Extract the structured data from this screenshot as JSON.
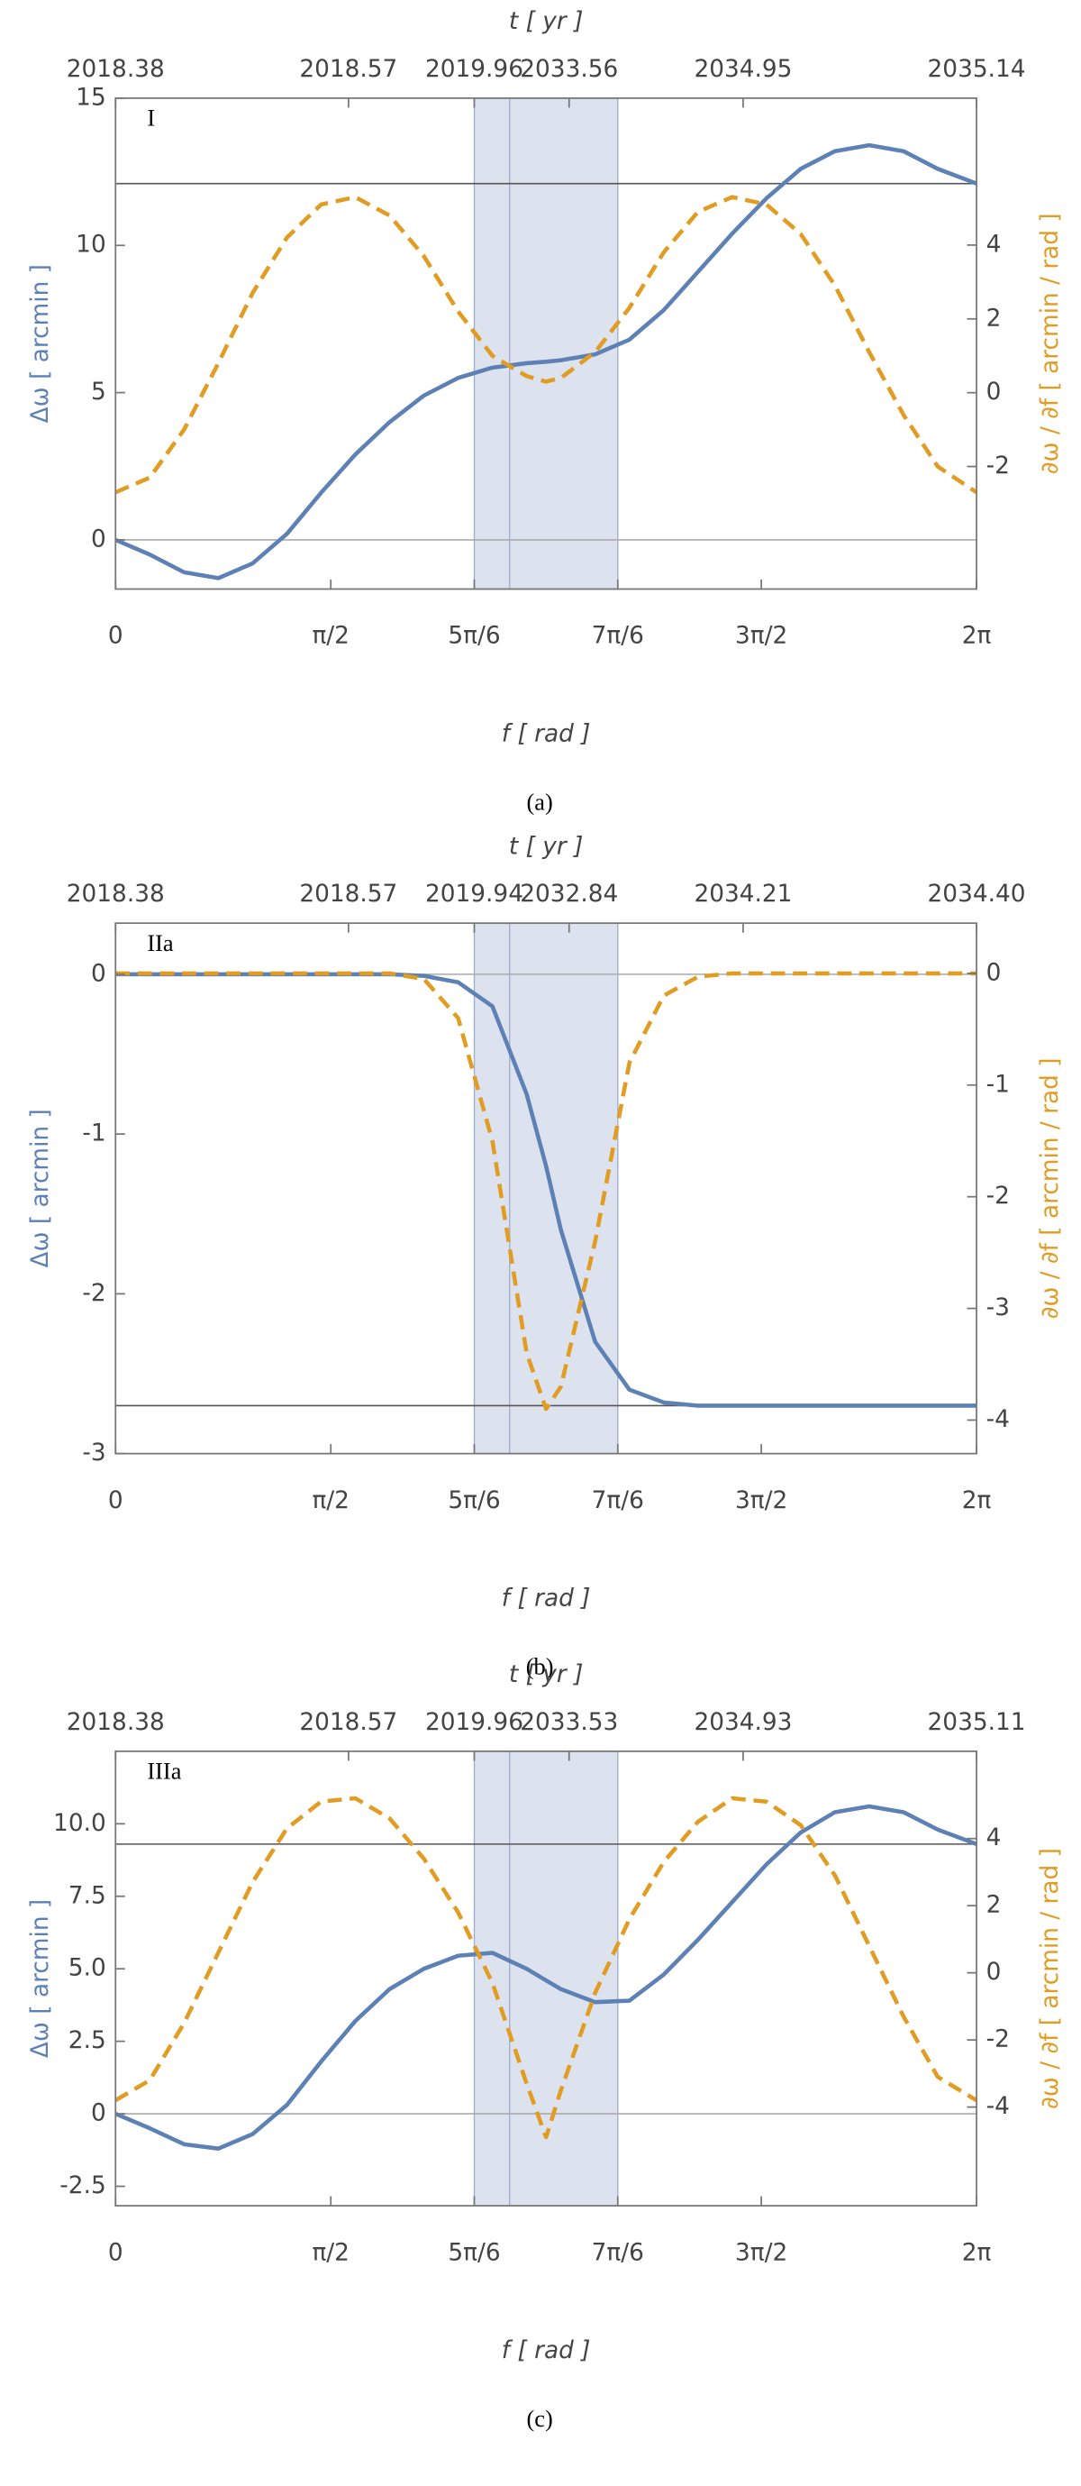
{
  "chart_data": [
    {
      "type": "line",
      "panel_label": "I",
      "caption": "(a)",
      "xlabel": "f [ rad ]",
      "x2label": "t [ yr ]",
      "ylabel": "Δω [ arcmin ]",
      "y2label": "∂ω / ∂f [ arcmin / rad ]",
      "x": [
        0,
        0.25,
        0.5,
        0.75,
        1.0,
        1.25,
        1.5,
        1.75,
        2.0,
        2.25,
        2.5,
        2.75,
        3.0,
        3.1416,
        3.25,
        3.5,
        3.75,
        4.0,
        4.25,
        4.5,
        4.75,
        5.0,
        5.25,
        5.5,
        5.75,
        6.0,
        6.2832
      ],
      "xlim": [
        0,
        6.2832
      ],
      "xticks": [
        0,
        {
          "value": 1.5708,
          "label": "π/2"
        },
        {
          "value": 2.618,
          "label": "5π/6"
        },
        {
          "value": 3.6652,
          "label": "7π/6"
        },
        {
          "value": 4.7124,
          "label": "3π/2"
        },
        {
          "value": 6.2832,
          "label": "2π"
        }
      ],
      "x2ticks": [
        {
          "value": 0,
          "label": "2018.38"
        },
        {
          "value": 1.7,
          "label": "2018.57"
        },
        {
          "value": 2.618,
          "label": "2019.96"
        },
        {
          "value": 3.31,
          "label": "2033.56"
        },
        {
          "value": 4.58,
          "label": "2034.95"
        },
        {
          "value": 6.2832,
          "label": "2035.14"
        }
      ],
      "ylim": [
        -1.67,
        15
      ],
      "yticks": [
        0,
        5,
        10,
        15
      ],
      "y2lim": [
        -5.32,
        7.98
      ],
      "y2ticks": [
        -2,
        0,
        2,
        4
      ],
      "shade": [
        2.618,
        3.6652
      ],
      "vline": 2.876,
      "hlines": [
        0,
        12.1
      ],
      "series": [
        {
          "color": "#5e81b5",
          "dashed": false,
          "values": [
            0,
            -0.5,
            -1.1,
            -1.3,
            -0.8,
            0.2,
            1.6,
            2.9,
            4.0,
            4.9,
            5.5,
            5.85,
            6.0,
            6.05,
            6.1,
            6.3,
            6.8,
            7.8,
            9.1,
            10.4,
            11.6,
            12.6,
            13.2,
            13.4,
            13.2,
            12.6,
            12.1
          ]
        },
        {
          "color": "#e19c24",
          "dashed": true,
          "axis": "y2",
          "values": [
            -2.7,
            -2.3,
            -1.0,
            0.8,
            2.7,
            4.2,
            5.1,
            5.3,
            4.8,
            3.7,
            2.2,
            1.0,
            0.45,
            0.3,
            0.4,
            1.1,
            2.3,
            3.8,
            4.9,
            5.3,
            5.1,
            4.3,
            2.9,
            1.1,
            -0.6,
            -2.0,
            -2.7
          ]
        }
      ]
    },
    {
      "type": "line",
      "panel_label": "IIa",
      "caption": "(b)",
      "xlabel": "f [ rad ]",
      "x2label": "t [ yr ]",
      "ylabel": "Δω [ arcmin ]",
      "y2label": "∂ω / ∂f [ arcmin / rad ]",
      "x": [
        0,
        0.25,
        0.5,
        0.75,
        1.0,
        1.25,
        1.5,
        1.75,
        2.0,
        2.25,
        2.5,
        2.75,
        3.0,
        3.1416,
        3.25,
        3.5,
        3.75,
        4.0,
        4.25,
        4.5,
        4.75,
        5.0,
        5.25,
        5.5,
        5.75,
        6.0,
        6.2832
      ],
      "xlim": [
        0,
        6.2832
      ],
      "xticks": [
        0,
        {
          "value": 1.5708,
          "label": "π/2"
        },
        {
          "value": 2.618,
          "label": "5π/6"
        },
        {
          "value": 3.6652,
          "label": "7π/6"
        },
        {
          "value": 4.7124,
          "label": "3π/2"
        },
        {
          "value": 6.2832,
          "label": "2π"
        }
      ],
      "x2ticks": [
        {
          "value": 0,
          "label": "2018.38"
        },
        {
          "value": 1.7,
          "label": "2018.57"
        },
        {
          "value": 2.618,
          "label": "2019.94"
        },
        {
          "value": 3.31,
          "label": "2032.84"
        },
        {
          "value": 4.58,
          "label": "2034.21"
        },
        {
          "value": 6.2832,
          "label": "2034.40"
        }
      ],
      "ylim": [
        -3.0,
        0.32
      ],
      "yticks": [
        0,
        -1,
        -2,
        -3
      ],
      "y2lim": [
        -4.3,
        0.45
      ],
      "y2ticks": [
        0,
        -1,
        -2,
        -3,
        -4
      ],
      "shade": [
        2.618,
        3.6652
      ],
      "vline": 2.876,
      "hlines": [
        0,
        -2.7
      ],
      "series": [
        {
          "color": "#5e81b5",
          "dashed": false,
          "values": [
            0,
            0,
            0,
            0,
            0,
            0,
            0,
            0,
            0,
            -0.01,
            -0.05,
            -0.2,
            -0.75,
            -1.2,
            -1.6,
            -2.3,
            -2.6,
            -2.68,
            -2.7,
            -2.7,
            -2.7,
            -2.7,
            -2.7,
            -2.7,
            -2.7,
            -2.7,
            -2.7
          ]
        },
        {
          "color": "#e19c24",
          "dashed": true,
          "axis": "y2",
          "values": [
            0,
            0,
            0,
            0,
            0,
            0,
            0,
            0,
            0,
            -0.05,
            -0.4,
            -1.5,
            -3.4,
            -3.9,
            -3.7,
            -2.4,
            -0.8,
            -0.2,
            -0.03,
            0,
            0,
            0,
            0,
            0,
            0,
            0,
            0
          ]
        }
      ]
    },
    {
      "type": "line",
      "panel_label": "IIIa",
      "caption": "(c)",
      "xlabel": "f [ rad ]",
      "x2label": "t [ yr ]",
      "ylabel": "Δω [ arcmin ]",
      "y2label": "∂ω / ∂f [ arcmin / rad ]",
      "x": [
        0,
        0.25,
        0.5,
        0.75,
        1.0,
        1.25,
        1.5,
        1.75,
        2.0,
        2.25,
        2.5,
        2.75,
        3.0,
        3.1416,
        3.25,
        3.5,
        3.75,
        4.0,
        4.25,
        4.5,
        4.75,
        5.0,
        5.25,
        5.5,
        5.75,
        6.0,
        6.2832
      ],
      "xlim": [
        0,
        6.2832
      ],
      "xticks": [
        0,
        {
          "value": 1.5708,
          "label": "π/2"
        },
        {
          "value": 2.618,
          "label": "5π/6"
        },
        {
          "value": 3.6652,
          "label": "7π/6"
        },
        {
          "value": 4.7124,
          "label": "3π/2"
        },
        {
          "value": 6.2832,
          "label": "2π"
        }
      ],
      "x2ticks": [
        {
          "value": 0,
          "label": "2018.38"
        },
        {
          "value": 1.7,
          "label": "2018.57"
        },
        {
          "value": 2.618,
          "label": "2019.96"
        },
        {
          "value": 3.31,
          "label": "2033.53"
        },
        {
          "value": 4.58,
          "label": "2034.93"
        },
        {
          "value": 6.2832,
          "label": "2035.11"
        }
      ],
      "ylim": [
        -3.17,
        12.5
      ],
      "yticks": [
        {
          "value": 10,
          "label": "10.0"
        },
        7.5,
        {
          "value": 5,
          "label": "5.0"
        },
        2.5,
        0,
        -2.5
      ],
      "y2lim": [
        -6.94,
        6.6
      ],
      "y2ticks": [
        -4,
        -2,
        0,
        2,
        4
      ],
      "shade": [
        2.618,
        3.6652
      ],
      "vline": 2.876,
      "hlines": [
        0,
        9.3
      ],
      "series": [
        {
          "color": "#5e81b5",
          "dashed": false,
          "values": [
            0,
            -0.5,
            -1.05,
            -1.2,
            -0.7,
            0.3,
            1.8,
            3.2,
            4.3,
            5.0,
            5.45,
            5.55,
            5.0,
            4.6,
            4.3,
            3.85,
            3.9,
            4.8,
            6.0,
            7.3,
            8.6,
            9.7,
            10.4,
            10.6,
            10.4,
            9.8,
            9.3
          ]
        },
        {
          "color": "#e19c24",
          "dashed": true,
          "axis": "y2",
          "values": [
            -3.8,
            -3.2,
            -1.5,
            0.6,
            2.7,
            4.3,
            5.1,
            5.2,
            4.6,
            3.4,
            1.8,
            -0.3,
            -3.3,
            -4.9,
            -3.5,
            -0.6,
            1.6,
            3.3,
            4.5,
            5.2,
            5.1,
            4.4,
            2.9,
            0.8,
            -1.3,
            -3.1,
            -3.8
          ]
        }
      ]
    }
  ]
}
